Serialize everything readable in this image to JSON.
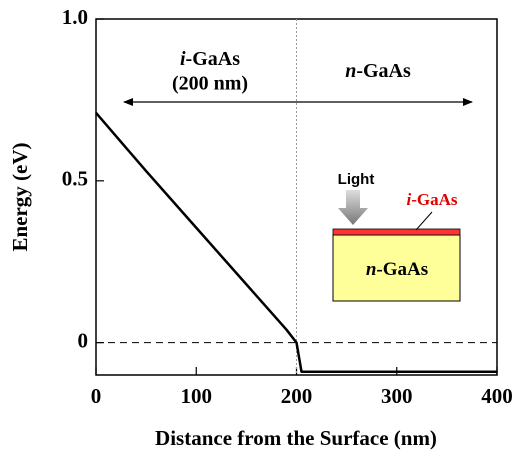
{
  "chart_data": {
    "type": "line",
    "xlabel": "Distance from the Surface (nm)",
    "ylabel": "Energy (eV)",
    "x": [
      0,
      50,
      100,
      150,
      190,
      200,
      205,
      400
    ],
    "series": [
      {
        "color": "#000000",
        "values": [
          0.71,
          0.53,
          0.355,
          0.18,
          0.04,
          0,
          -0.09,
          -0.09
        ]
      }
    ],
    "xlim": [
      0,
      400
    ],
    "xticks": [
      0,
      100,
      200,
      300,
      400
    ],
    "ylim": [
      -0.1,
      1.0
    ],
    "yticks": [
      0,
      0.5,
      {
        "value": 1,
        "label": "1.0"
      }
    ],
    "annotations": {
      "i_region": {
        "italic": "i",
        "rest": "-GaAs",
        "sub": "(200 nm)"
      },
      "n_region": {
        "italic": "n",
        "rest": "-GaAs"
      },
      "inset": {
        "light": "Light",
        "top_italic": "i",
        "top_rest": "-GaAs",
        "bottom_italic": "n",
        "bottom_rest": "-GaAs"
      }
    }
  }
}
